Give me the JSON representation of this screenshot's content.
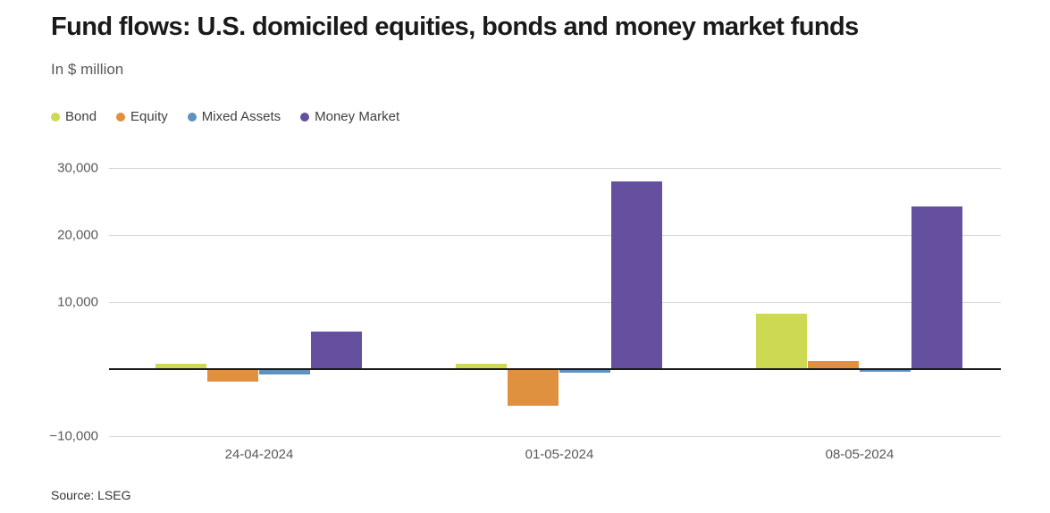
{
  "header": {
    "title": "Fund flows: U.S. domiciled equities, bonds and money market funds",
    "subtitle": "In $ million"
  },
  "chart_data": {
    "type": "bar",
    "title": "Fund flows: U.S. domiciled equities, bonds and money market funds",
    "unit_label": "In $ million",
    "categories": [
      "24-04-2024",
      "01-05-2024",
      "08-05-2024"
    ],
    "series": [
      {
        "name": "Bond",
        "color": "#cdd952",
        "values": [
          800,
          700,
          8200
        ]
      },
      {
        "name": "Equity",
        "color": "#e0913f",
        "values": [
          -1900,
          -5500,
          1100
        ]
      },
      {
        "name": "Mixed Assets",
        "color": "#5e92c2",
        "values": [
          -900,
          -600,
          -400
        ]
      },
      {
        "name": "Money Market",
        "color": "#65509f",
        "values": [
          5600,
          27900,
          24200
        ]
      }
    ],
    "y_ticks": [
      30000,
      20000,
      10000,
      -10000
    ],
    "y_tick_labels": [
      "30,000",
      "20,000",
      "10,000",
      "−10,000"
    ],
    "ylim": [
      -13000,
      33000
    ],
    "grid": true,
    "legend_position": "top",
    "zero_axis": true
  },
  "footer": {
    "source": "Source: LSEG"
  }
}
